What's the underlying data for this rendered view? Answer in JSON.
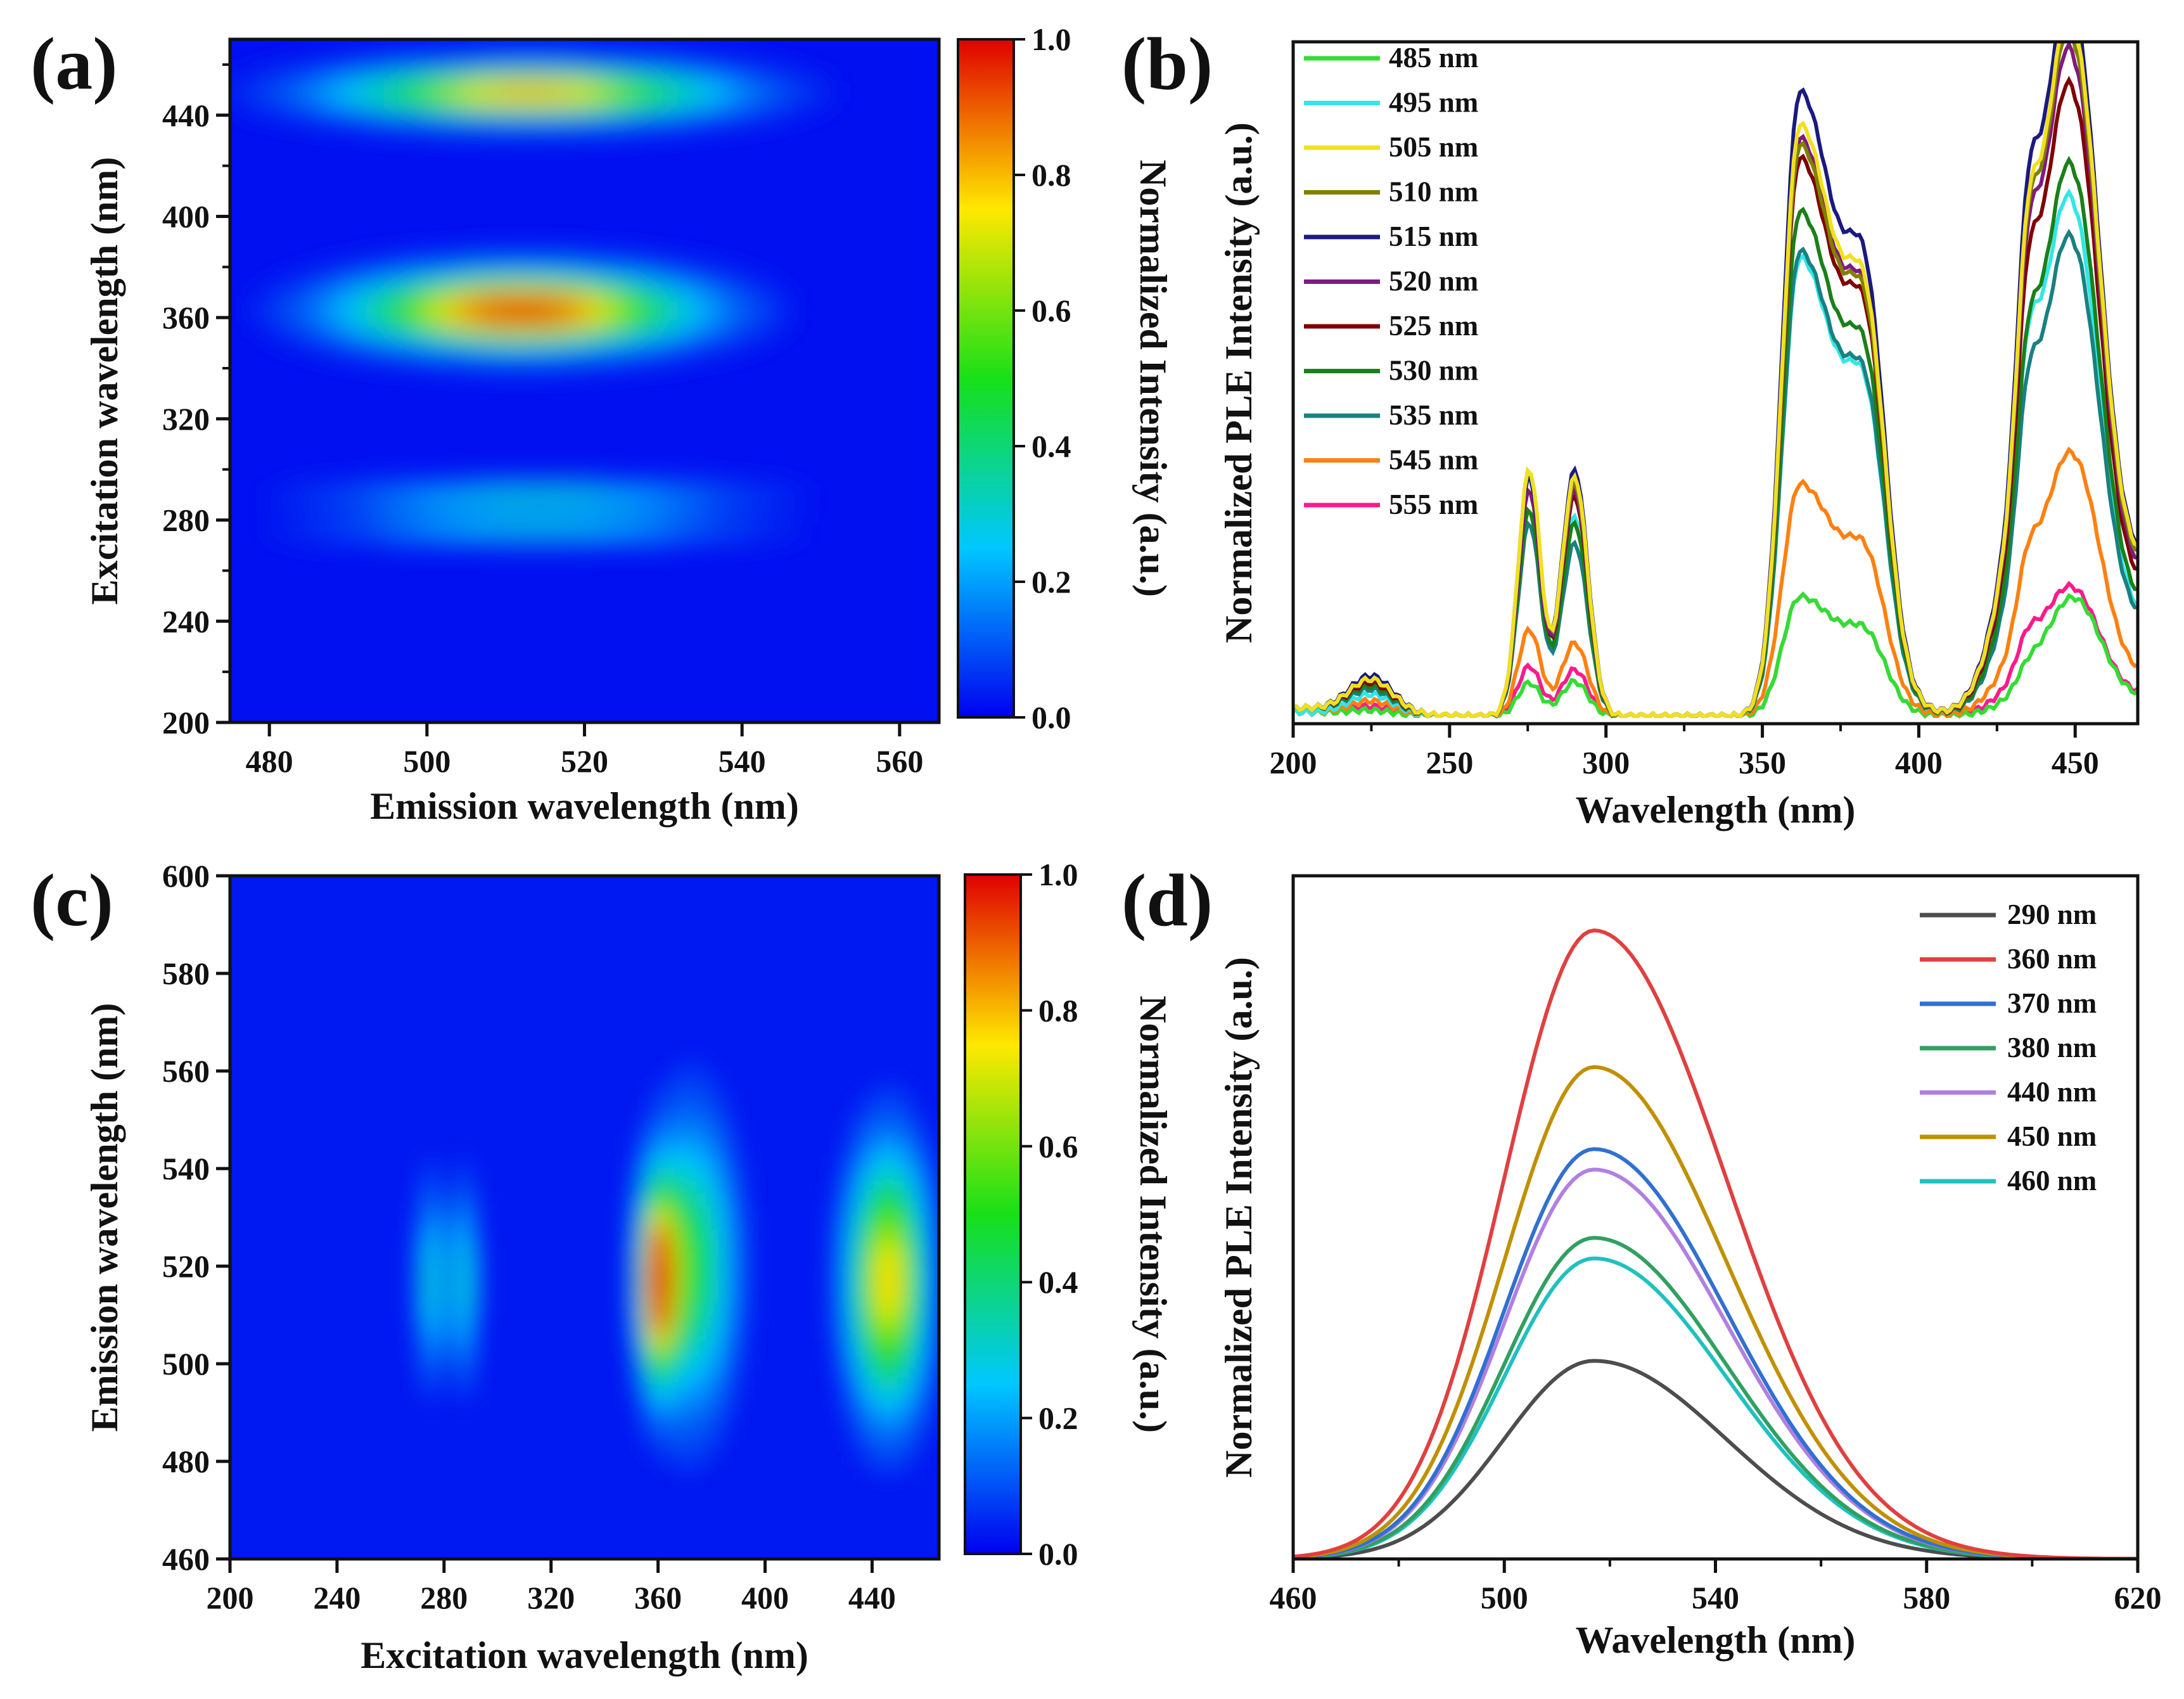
{
  "chart_data": [
    {
      "panel": "(a)",
      "type": "heatmap",
      "xlabel": "Emission wavelength (nm)",
      "ylabel": "Excitation wavelength (nm)",
      "xlim": [
        475,
        565
      ],
      "ylim": [
        200,
        470
      ],
      "xticks": [
        480,
        500,
        520,
        540,
        560
      ],
      "yticks": [
        200,
        240,
        280,
        320,
        360,
        400,
        440
      ],
      "colorbar": {
        "label": "Normalized Intensity (a.u.)",
        "range": [
          0.0,
          1.0
        ],
        "ticks": [
          "0.0",
          "0.2",
          "0.4",
          "0.6",
          "0.8",
          "1.0"
        ]
      },
      "hotspots": [
        {
          "excitation": 362,
          "emission": 512,
          "intensity": 1.0
        },
        {
          "excitation": 449,
          "emission": 513,
          "intensity": 0.82
        },
        {
          "excitation": 289,
          "emission": 513,
          "intensity": 0.32
        },
        {
          "excitation": 276,
          "emission": 513,
          "intensity": 0.3
        }
      ]
    },
    {
      "panel": "(b)",
      "type": "line",
      "xlabel": "Wavelength (nm)",
      "ylabel": "Normalized PLE Intensity (a.u.)",
      "xlim": [
        200,
        470
      ],
      "xticks": [
        200,
        250,
        300,
        350,
        400,
        450
      ],
      "legend_position": "top-left",
      "series": [
        {
          "name": "485 nm",
          "color": "#33dd33",
          "values": {
            "p225": 0.006,
            "p276": 0.05,
            "p290": 0.052,
            "p362": 0.18,
            "p435": 0.06,
            "p450": 0.16,
            "end": 0.07
          }
        },
        {
          "name": "495 nm",
          "color": "#33e6e6",
          "values": {
            "p225": 0.03,
            "p276": 0.31,
            "p290": 0.3,
            "p362": 0.69,
            "p435": 0.5,
            "p450": 0.62,
            "end": 0.36
          }
        },
        {
          "name": "505 nm",
          "color": "#f0e020",
          "values": {
            "p225": 0.05,
            "p276": 0.37,
            "p290": 0.36,
            "p362": 0.89,
            "p435": 0.66,
            "p450": 0.84,
            "end": 0.57
          }
        },
        {
          "name": "510 nm",
          "color": "#808000",
          "values": {
            "p225": 0.05,
            "p276": 0.37,
            "p290": 0.35,
            "p362": 0.86,
            "p435": 0.65,
            "p450": 0.82,
            "end": 0.55
          }
        },
        {
          "name": "515 nm",
          "color": "#1a1a80",
          "values": {
            "p225": 0.055,
            "p276": 0.36,
            "p290": 0.37,
            "p362": 0.94,
            "p435": 0.7,
            "p450": 0.86,
            "end": 0.58
          }
        },
        {
          "name": "520 nm",
          "color": "#801a80",
          "values": {
            "p225": 0.05,
            "p276": 0.34,
            "p290": 0.34,
            "p362": 0.87,
            "p435": 0.63,
            "p450": 0.8,
            "end": 0.52
          }
        },
        {
          "name": "525 nm",
          "color": "#800000",
          "values": {
            "p225": 0.045,
            "p276": 0.34,
            "p290": 0.33,
            "p362": 0.84,
            "p435": 0.59,
            "p450": 0.76,
            "end": 0.48
          }
        },
        {
          "name": "530 nm",
          "color": "#1a801a",
          "values": {
            "p225": 0.04,
            "p276": 0.31,
            "p290": 0.29,
            "p362": 0.76,
            "p435": 0.5,
            "p450": 0.67,
            "end": 0.41
          }
        },
        {
          "name": "535 nm",
          "color": "#1a8080",
          "values": {
            "p225": 0.035,
            "p276": 0.29,
            "p290": 0.26,
            "p362": 0.7,
            "p435": 0.44,
            "p450": 0.58,
            "end": 0.35
          }
        },
        {
          "name": "545 nm",
          "color": "#ff8010",
          "values": {
            "p225": 0.02,
            "p276": 0.13,
            "p290": 0.11,
            "p362": 0.35,
            "p435": 0.21,
            "p450": 0.33,
            "end": 0.15
          }
        },
        {
          "name": "555 nm",
          "color": "#ff1a8c",
          "values": {
            "p225": 0.012,
            "p276": 0.075,
            "p290": 0.07,
            "p362": 0.18,
            "p435": 0.11,
            "p450": 0.16,
            "end": 0.08
          }
        }
      ]
    },
    {
      "panel": "(c)",
      "type": "heatmap",
      "xlabel": "Excitation wavelength (nm)",
      "ylabel": "Emission wavelength (nm)",
      "xlim": [
        200,
        465
      ],
      "ylim": [
        460,
        600
      ],
      "xticks": [
        200,
        240,
        280,
        320,
        360,
        400,
        440
      ],
      "yticks": [
        460,
        480,
        500,
        520,
        540,
        560,
        580,
        600
      ],
      "colorbar": {
        "label": "Normalized Intensity (a.u.)",
        "range": [
          0.0,
          1.0
        ],
        "ticks": [
          "0.0",
          "0.2",
          "0.4",
          "0.6",
          "0.8",
          "1.0"
        ]
      },
      "hotspots": [
        {
          "excitation": 360,
          "emission": 517,
          "intensity": 1.0
        },
        {
          "excitation": 446,
          "emission": 517,
          "intensity": 0.75
        },
        {
          "excitation": 287,
          "emission": 517,
          "intensity": 0.3
        },
        {
          "excitation": 275,
          "emission": 517,
          "intensity": 0.3
        }
      ]
    },
    {
      "panel": "(d)",
      "type": "line",
      "xlabel": "Wavelength (nm)",
      "ylabel": "Normalized PLE Intensity (a.u.)",
      "xlim": [
        460,
        620
      ],
      "xticks": [
        460,
        500,
        540,
        580,
        620
      ],
      "legend_position": "top-right",
      "series": [
        {
          "name": "290 nm",
          "color": "#4d4d4d",
          "peak_x": 517,
          "peak_y": 0.29
        },
        {
          "name": "360 nm",
          "color": "#e04040",
          "peak_x": 517,
          "peak_y": 0.92
        },
        {
          "name": "370 nm",
          "color": "#3070d0",
          "peak_x": 517,
          "peak_y": 0.6
        },
        {
          "name": "380 nm",
          "color": "#30a060",
          "peak_x": 517,
          "peak_y": 0.47
        },
        {
          "name": "440 nm",
          "color": "#b080e0",
          "peak_x": 517,
          "peak_y": 0.57
        },
        {
          "name": "450 nm",
          "color": "#c09000",
          "peak_x": 517,
          "peak_y": 0.72
        },
        {
          "name": "460 nm",
          "color": "#20c0c0",
          "peak_x": 517,
          "peak_y": 0.44
        }
      ]
    }
  ]
}
